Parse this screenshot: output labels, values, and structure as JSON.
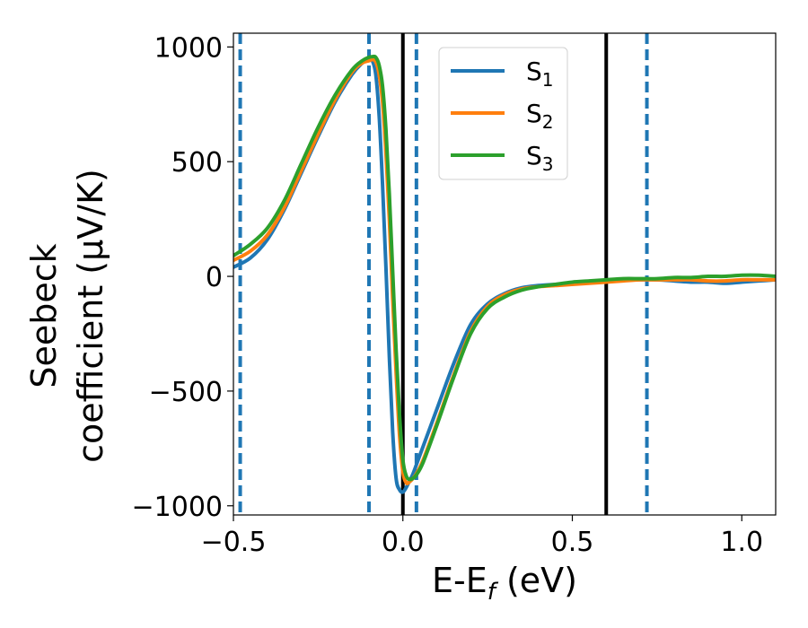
{
  "chart_data": {
    "type": "line",
    "xlabel": "E-E_f (eV)",
    "xlabel_parts": {
      "main": "E-E",
      "sub": "f",
      "unit": " (eV)"
    },
    "ylabel": "Seebeck coefficient (μV/K)",
    "ylabel_lines": [
      "Seebeck",
      "coefficient  (μV/K)"
    ],
    "xlim": [
      -0.5,
      1.1
    ],
    "ylim": [
      -1040,
      1060
    ],
    "xticks": [
      -0.5,
      0.0,
      0.5,
      1.0
    ],
    "xtick_labels": [
      "−0.5",
      "0.0",
      "0.5",
      "1.0"
    ],
    "yticks": [
      -1000,
      -500,
      0,
      500,
      1000
    ],
    "ytick_labels": [
      "−1000",
      "−500",
      "0",
      "500",
      "1000"
    ],
    "grid": false,
    "legend_position": "top-center",
    "legend_labels": [
      {
        "main": "S",
        "sub": "1"
      },
      {
        "main": "S",
        "sub": "2"
      },
      {
        "main": "S",
        "sub": "3"
      }
    ],
    "vertical_lines": [
      {
        "x": -0.48,
        "style": "dashed",
        "color": "#1f77b4"
      },
      {
        "x": -0.1,
        "style": "dashed",
        "color": "#1f77b4"
      },
      {
        "x": 0.04,
        "style": "dashed",
        "color": "#1f77b4"
      },
      {
        "x": 0.72,
        "style": "dashed",
        "color": "#1f77b4"
      },
      {
        "x": 0.0,
        "style": "solid",
        "color": "#000000"
      },
      {
        "x": 0.6,
        "style": "solid",
        "color": "#000000"
      }
    ],
    "series": [
      {
        "name": "S₁",
        "color": "#1f77b4",
        "x": [
          -0.5,
          -0.45,
          -0.4,
          -0.35,
          -0.3,
          -0.25,
          -0.2,
          -0.15,
          -0.12,
          -0.1,
          -0.09,
          -0.08,
          -0.07,
          -0.06,
          -0.05,
          -0.04,
          -0.03,
          -0.02,
          -0.01,
          0.0,
          0.01,
          0.02,
          0.03,
          0.05,
          0.1,
          0.15,
          0.2,
          0.25,
          0.3,
          0.35,
          0.4,
          0.45,
          0.5,
          0.55,
          0.6,
          0.65,
          0.7,
          0.75,
          0.8,
          0.85,
          0.9,
          0.95,
          1.0,
          1.05,
          1.1
        ],
        "y": [
          40,
          80,
          160,
          290,
          450,
          610,
          760,
          880,
          930,
          950,
          940,
          880,
          700,
          400,
          40,
          -350,
          -680,
          -880,
          -930,
          -940,
          -920,
          -890,
          -860,
          -780,
          -580,
          -380,
          -210,
          -120,
          -75,
          -50,
          -40,
          -35,
          -30,
          -25,
          -20,
          -15,
          -15,
          -15,
          -20,
          -25,
          -25,
          -30,
          -25,
          -20,
          -15
        ]
      },
      {
        "name": "S₂",
        "color": "#ff7f0e",
        "x": [
          -0.5,
          -0.45,
          -0.4,
          -0.35,
          -0.3,
          -0.25,
          -0.2,
          -0.15,
          -0.12,
          -0.1,
          -0.09,
          -0.08,
          -0.07,
          -0.06,
          -0.05,
          -0.04,
          -0.03,
          -0.02,
          -0.01,
          0.0,
          0.01,
          0.02,
          0.03,
          0.04,
          0.06,
          0.1,
          0.15,
          0.2,
          0.25,
          0.3,
          0.35,
          0.4,
          0.45,
          0.5,
          0.55,
          0.6,
          0.65,
          0.7,
          0.75,
          0.8,
          0.85,
          0.9,
          0.95,
          1.0,
          1.05,
          1.1
        ],
        "y": [
          70,
          110,
          180,
          300,
          460,
          620,
          770,
          890,
          930,
          940,
          945,
          935,
          880,
          760,
          540,
          250,
          -100,
          -420,
          -690,
          -850,
          -900,
          -895,
          -880,
          -860,
          -800,
          -640,
          -430,
          -240,
          -130,
          -80,
          -55,
          -45,
          -40,
          -35,
          -30,
          -25,
          -20,
          -15,
          -15,
          -15,
          -15,
          -20,
          -20,
          -15,
          -15,
          -15
        ]
      },
      {
        "name": "S₃",
        "color": "#2ca02c",
        "x": [
          -0.5,
          -0.45,
          -0.4,
          -0.35,
          -0.3,
          -0.25,
          -0.2,
          -0.15,
          -0.12,
          -0.1,
          -0.09,
          -0.08,
          -0.07,
          -0.06,
          -0.05,
          -0.04,
          -0.03,
          -0.02,
          -0.01,
          0.0,
          0.01,
          0.02,
          0.03,
          0.04,
          0.06,
          0.1,
          0.15,
          0.2,
          0.25,
          0.3,
          0.35,
          0.4,
          0.45,
          0.5,
          0.55,
          0.6,
          0.65,
          0.7,
          0.75,
          0.8,
          0.85,
          0.9,
          0.95,
          1.0,
          1.05,
          1.1
        ],
        "y": [
          90,
          140,
          210,
          330,
          490,
          650,
          790,
          900,
          940,
          955,
          958,
          955,
          920,
          830,
          640,
          360,
          20,
          -320,
          -600,
          -800,
          -870,
          -885,
          -880,
          -865,
          -810,
          -650,
          -440,
          -250,
          -140,
          -90,
          -60,
          -45,
          -35,
          -25,
          -20,
          -15,
          -10,
          -10,
          -10,
          -5,
          -5,
          0,
          0,
          5,
          5,
          0
        ]
      }
    ]
  }
}
